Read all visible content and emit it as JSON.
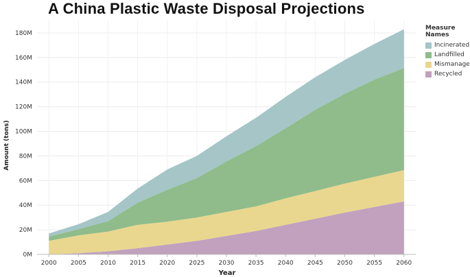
{
  "title": "A China Plastic Waste Disposal Projections",
  "legend": {
    "title": "Measure Names",
    "items": [
      {
        "label": "Incinerated",
        "color": "#a5c5c7"
      },
      {
        "label": "Landfilled",
        "color": "#8fbc8a"
      },
      {
        "label": "Mismanaged",
        "color": "#e9d78f"
      },
      {
        "label": "Recycled",
        "color": "#c1a1bd"
      }
    ]
  },
  "chart_data": {
    "type": "area",
    "stacked": true,
    "xlabel": "Year",
    "ylabel": "Amount (tons)",
    "x": [
      2000,
      2005,
      2010,
      2015,
      2020,
      2025,
      2030,
      2035,
      2040,
      2045,
      2050,
      2055,
      2060
    ],
    "xlim": [
      1998,
      2062
    ],
    "ylim": [
      0,
      190000000
    ],
    "xticks": [
      2000,
      2005,
      2010,
      2015,
      2020,
      2025,
      2030,
      2035,
      2040,
      2045,
      2050,
      2055,
      2060
    ],
    "xtick_labels": [
      "2000",
      "2005",
      "2010",
      "2015",
      "2020",
      "2025",
      "2030",
      "2035",
      "2040",
      "2045",
      "2050",
      "2055",
      "2060"
    ],
    "yticks": [
      0,
      20000000,
      40000000,
      60000000,
      80000000,
      100000000,
      120000000,
      140000000,
      160000000,
      180000000
    ],
    "ytick_labels": [
      "0M",
      "20M",
      "40M",
      "60M",
      "80M",
      "100M",
      "120M",
      "140M",
      "160M",
      "180M"
    ],
    "grid": true,
    "legend_position": "top-right",
    "series": [
      {
        "name": "Recycled",
        "color": "#c1a1bd",
        "values": [
          0,
          1000000,
          2500000,
          5000000,
          8000000,
          11000000,
          15000000,
          19000000,
          24000000,
          29000000,
          34000000,
          38500000,
          43000000
        ]
      },
      {
        "name": "Mismanaged",
        "color": "#e9d78f",
        "values": [
          11000000,
          14500000,
          16000000,
          19000000,
          18500000,
          19000000,
          19500000,
          20000000,
          21500000,
          22500000,
          23500000,
          24500000,
          25500000
        ]
      },
      {
        "name": "Landfilled",
        "color": "#8fbc8a",
        "values": [
          3500000,
          5000000,
          8500000,
          18000000,
          26000000,
          32000000,
          41000000,
          49000000,
          57000000,
          66000000,
          73000000,
          79000000,
          83000000
        ]
      },
      {
        "name": "Incinerated",
        "color": "#a5c5c7",
        "values": [
          2500000,
          4000000,
          7500000,
          11500000,
          16500000,
          18000000,
          20500000,
          23000000,
          25500000,
          26500000,
          27500000,
          29000000,
          31500000
        ]
      }
    ]
  }
}
